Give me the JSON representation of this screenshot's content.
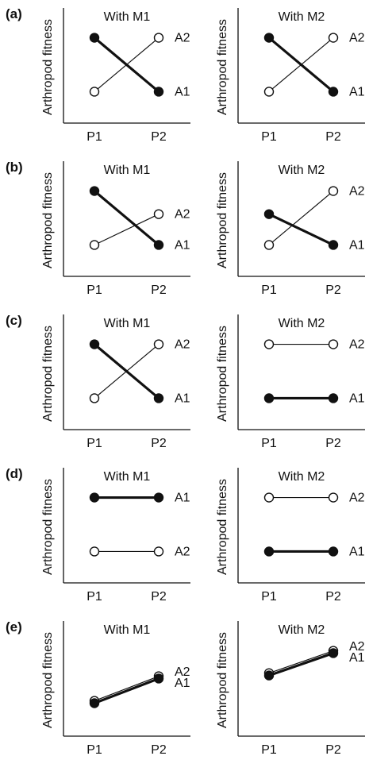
{
  "figure": {
    "ylabel": "Arthropod fitness",
    "x_categories": [
      "P1",
      "P2"
    ]
  },
  "chart_data": [
    {
      "type": "line",
      "panel": "a",
      "title": "With M1",
      "ylabel": "Arthropod fitness",
      "categories": [
        "P1",
        "P2"
      ],
      "ylim": [
        0,
        1
      ],
      "series": [
        {
          "name": "A2",
          "marker": "open",
          "line": "thin",
          "values": [
            0.15,
            0.85
          ]
        },
        {
          "name": "A1",
          "marker": "filled",
          "line": "thick",
          "values": [
            0.85,
            0.15
          ]
        }
      ]
    },
    {
      "type": "line",
      "panel": "",
      "title": "With M2",
      "ylabel": "Arthropod fitness",
      "categories": [
        "P1",
        "P2"
      ],
      "ylim": [
        0,
        1
      ],
      "series": [
        {
          "name": "A2",
          "marker": "open",
          "line": "thin",
          "values": [
            0.15,
            0.85
          ]
        },
        {
          "name": "A1",
          "marker": "filled",
          "line": "thick",
          "values": [
            0.85,
            0.15
          ]
        }
      ]
    },
    {
      "type": "line",
      "panel": "b",
      "title": "With M1",
      "ylabel": "Arthropod fitness",
      "categories": [
        "P1",
        "P2"
      ],
      "ylim": [
        0,
        1
      ],
      "series": [
        {
          "name": "A2",
          "marker": "open",
          "line": "thin",
          "values": [
            0.15,
            0.55
          ]
        },
        {
          "name": "A1",
          "marker": "filled",
          "line": "thick",
          "values": [
            0.85,
            0.15
          ]
        }
      ]
    },
    {
      "type": "line",
      "panel": "",
      "title": "With M2",
      "ylabel": "Arthropod fitness",
      "categories": [
        "P1",
        "P2"
      ],
      "ylim": [
        0,
        1
      ],
      "series": [
        {
          "name": "A2",
          "marker": "open",
          "line": "thin",
          "values": [
            0.15,
            0.85
          ]
        },
        {
          "name": "A1",
          "marker": "filled",
          "line": "thick",
          "values": [
            0.55,
            0.15
          ]
        }
      ]
    },
    {
      "type": "line",
      "panel": "c",
      "title": "With M1",
      "ylabel": "Arthropod fitness",
      "categories": [
        "P1",
        "P2"
      ],
      "ylim": [
        0,
        1
      ],
      "series": [
        {
          "name": "A2",
          "marker": "open",
          "line": "thin",
          "values": [
            0.15,
            0.85
          ]
        },
        {
          "name": "A1",
          "marker": "filled",
          "line": "thick",
          "values": [
            0.85,
            0.15
          ]
        }
      ]
    },
    {
      "type": "line",
      "panel": "",
      "title": "With M2",
      "ylabel": "Arthropod fitness",
      "categories": [
        "P1",
        "P2"
      ],
      "ylim": [
        0,
        1
      ],
      "series": [
        {
          "name": "A2",
          "marker": "open",
          "line": "thin",
          "values": [
            0.85,
            0.85
          ]
        },
        {
          "name": "A1",
          "marker": "filled",
          "line": "thick",
          "values": [
            0.15,
            0.15
          ]
        }
      ]
    },
    {
      "type": "line",
      "panel": "d",
      "title": "With M1",
      "ylabel": "Arthropod fitness",
      "categories": [
        "P1",
        "P2"
      ],
      "ylim": [
        0,
        1
      ],
      "series": [
        {
          "name": "A1",
          "marker": "filled",
          "line": "thick",
          "values": [
            0.85,
            0.85
          ]
        },
        {
          "name": "A2",
          "marker": "open",
          "line": "thin",
          "values": [
            0.15,
            0.15
          ]
        }
      ]
    },
    {
      "type": "line",
      "panel": "",
      "title": "With M2",
      "ylabel": "Arthropod fitness",
      "categories": [
        "P1",
        "P2"
      ],
      "ylim": [
        0,
        1
      ],
      "series": [
        {
          "name": "A2",
          "marker": "open",
          "line": "thin",
          "values": [
            0.85,
            0.85
          ]
        },
        {
          "name": "A1",
          "marker": "filled",
          "line": "thick",
          "values": [
            0.15,
            0.15
          ]
        }
      ]
    },
    {
      "type": "line",
      "panel": "e",
      "title": "With M1",
      "ylabel": "Arthropod fitness",
      "categories": [
        "P1",
        "P2"
      ],
      "ylim": [
        0,
        1
      ],
      "series": [
        {
          "name": "A2",
          "marker": "open",
          "line": "thin",
          "values": [
            0.2,
            0.52
          ]
        },
        {
          "name": "A1",
          "marker": "filled",
          "line": "thick",
          "values": [
            0.17,
            0.49
          ]
        }
      ]
    },
    {
      "type": "line",
      "panel": "",
      "title": "With M2",
      "ylabel": "Arthropod fitness",
      "categories": [
        "P1",
        "P2"
      ],
      "ylim": [
        0,
        1
      ],
      "series": [
        {
          "name": "A2",
          "marker": "open",
          "line": "thin",
          "values": [
            0.56,
            0.85
          ]
        },
        {
          "name": "A1",
          "marker": "filled",
          "line": "thick",
          "values": [
            0.53,
            0.82
          ]
        }
      ]
    }
  ]
}
